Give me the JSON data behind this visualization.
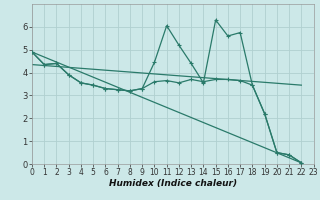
{
  "background_color": "#cce8e8",
  "grid_color": "#b0d0d0",
  "line_color": "#2a7a6a",
  "xlabel": "Humidex (Indice chaleur)",
  "xlim": [
    0,
    23
  ],
  "ylim": [
    0,
    7
  ],
  "xticks": [
    0,
    1,
    2,
    3,
    4,
    5,
    6,
    7,
    8,
    9,
    10,
    11,
    12,
    13,
    14,
    15,
    16,
    17,
    18,
    19,
    20,
    21,
    22,
    23
  ],
  "yticks": [
    0,
    1,
    2,
    3,
    4,
    5,
    6
  ],
  "series_jagged": {
    "x": [
      0,
      1,
      2,
      3,
      4,
      5,
      6,
      7,
      8,
      9,
      10,
      11,
      12,
      13,
      14,
      15,
      16,
      17,
      18,
      19,
      20,
      21,
      22
    ],
    "y": [
      4.9,
      4.35,
      4.4,
      3.9,
      3.55,
      3.45,
      3.3,
      3.25,
      3.2,
      3.3,
      4.45,
      6.05,
      5.2,
      4.4,
      3.55,
      6.3,
      5.6,
      5.75,
      3.45,
      2.2,
      0.5,
      0.4,
      0.05
    ]
  },
  "series_smooth": {
    "x": [
      0,
      1,
      2,
      3,
      4,
      5,
      6,
      7,
      8,
      9,
      10,
      11,
      12,
      13,
      14,
      15,
      16,
      17,
      18,
      19,
      20,
      21,
      22
    ],
    "y": [
      4.9,
      4.35,
      4.4,
      3.9,
      3.55,
      3.45,
      3.3,
      3.25,
      3.2,
      3.3,
      3.6,
      3.65,
      3.55,
      3.7,
      3.6,
      3.7,
      3.7,
      3.65,
      3.45,
      2.2,
      0.5,
      0.4,
      0.05
    ]
  },
  "line_steep": {
    "x": [
      0,
      22
    ],
    "y": [
      4.9,
      0.05
    ]
  },
  "line_flat": {
    "x": [
      0,
      22
    ],
    "y": [
      4.35,
      3.45
    ]
  }
}
